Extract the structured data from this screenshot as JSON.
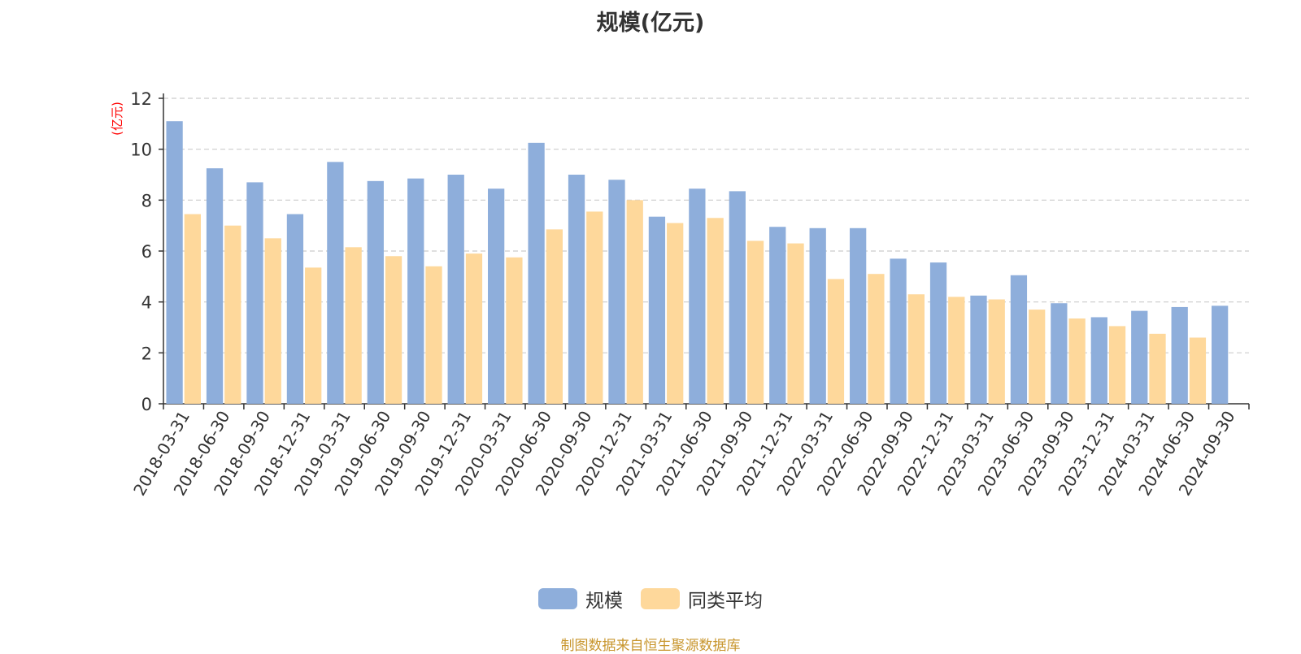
{
  "chart_data": {
    "type": "bar",
    "title": "规模(亿元)",
    "ylabel": "(亿元)",
    "xlabel": "",
    "ylim": [
      0,
      12
    ],
    "yticks": [
      0,
      2,
      4,
      6,
      8,
      10,
      12
    ],
    "grid": true,
    "categories": [
      "2018-03-31",
      "2018-06-30",
      "2018-09-30",
      "2018-12-31",
      "2019-03-31",
      "2019-06-30",
      "2019-09-30",
      "2019-12-31",
      "2020-03-31",
      "2020-06-30",
      "2020-09-30",
      "2020-12-31",
      "2021-03-31",
      "2021-06-30",
      "2021-09-30",
      "2021-12-31",
      "2022-03-31",
      "2022-06-30",
      "2022-09-30",
      "2022-12-31",
      "2023-03-31",
      "2023-06-30",
      "2023-09-30",
      "2023-12-31",
      "2024-03-31",
      "2024-06-30",
      "2024-09-30"
    ],
    "series": [
      {
        "name": "规模",
        "color": "#8eaedb",
        "values": [
          11.1,
          9.25,
          8.7,
          7.45,
          9.5,
          8.75,
          8.85,
          9.0,
          8.45,
          10.25,
          9.0,
          8.8,
          7.35,
          8.45,
          8.35,
          6.95,
          6.9,
          6.9,
          5.7,
          5.55,
          4.25,
          5.05,
          3.95,
          3.4,
          3.65,
          3.8,
          3.85
        ]
      },
      {
        "name": "同类平均",
        "color": "#fed89b",
        "values": [
          7.45,
          7.0,
          6.5,
          5.35,
          6.15,
          5.8,
          5.4,
          5.9,
          5.75,
          6.85,
          7.55,
          8.0,
          7.1,
          7.3,
          6.4,
          6.3,
          4.9,
          5.1,
          4.3,
          4.2,
          4.1,
          3.7,
          3.35,
          3.05,
          2.75,
          2.6,
          null
        ]
      }
    ],
    "legend_position": "bottom-center",
    "source": "制图数据来自恒生聚源数据库"
  },
  "colors": {
    "axis": "#333333",
    "grid": "#cccccc",
    "ylabel": "#ff0000",
    "source": "#c8962e"
  }
}
